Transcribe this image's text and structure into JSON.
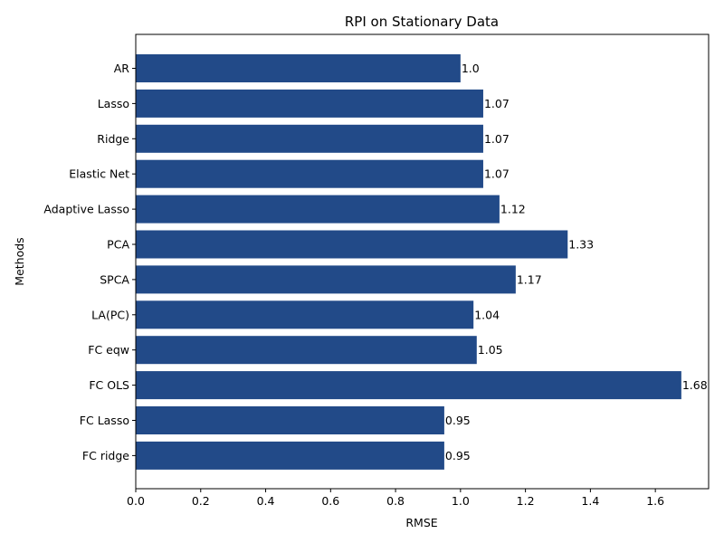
{
  "chart_data": {
    "type": "bar",
    "orientation": "horizontal",
    "title": "RPI on Stationary Data",
    "xlabel": "RMSE",
    "ylabel": "Methods",
    "categories": [
      "AR",
      "Lasso",
      "Ridge",
      "Elastic Net",
      "Adaptive Lasso",
      "PCA",
      "SPCA",
      "LA(PC)",
      "FC eqw",
      "FC OLS",
      "FC Lasso",
      "FC ridge"
    ],
    "values": [
      1.0,
      1.07,
      1.07,
      1.07,
      1.12,
      1.33,
      1.17,
      1.04,
      1.05,
      1.68,
      0.95,
      0.95
    ],
    "data_labels": [
      "1.0",
      "1.07",
      "1.07",
      "1.07",
      "1.12",
      "1.33",
      "1.17",
      "1.04",
      "1.05",
      "1.68",
      "0.95",
      "0.95"
    ],
    "xlim": [
      0,
      1.764
    ],
    "xticks": [
      "0.0",
      "0.2",
      "0.4",
      "0.6",
      "0.8",
      "1.0",
      "1.2",
      "1.4",
      "1.6"
    ],
    "bar_color": "#224a88",
    "grid": false,
    "legend": "none"
  }
}
